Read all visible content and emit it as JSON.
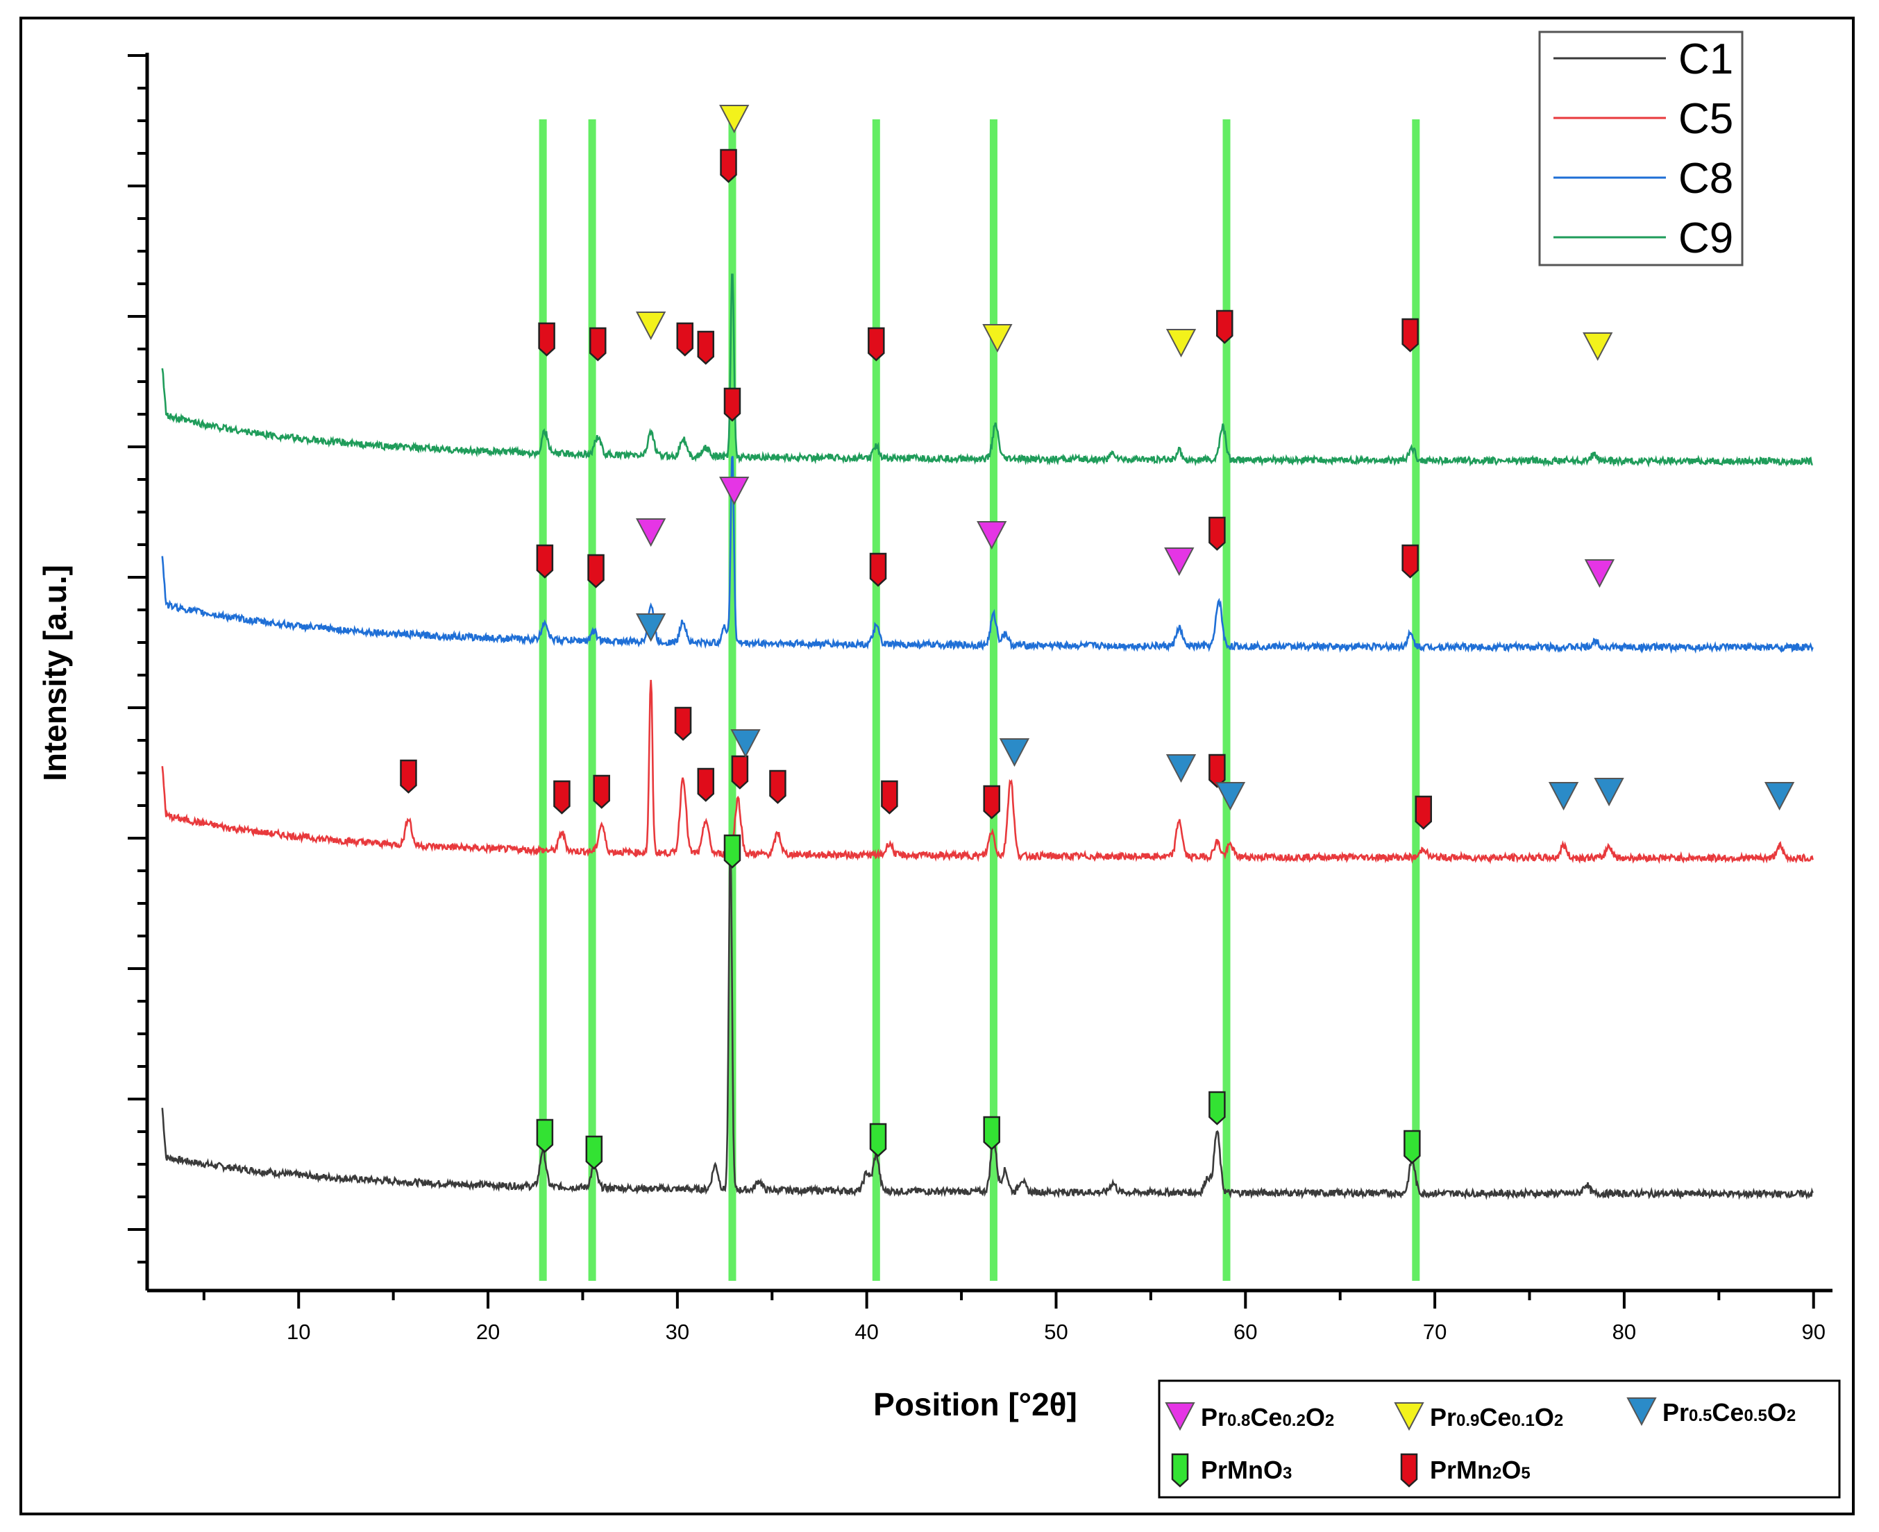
{
  "chart_data": {
    "type": "line",
    "xlabel": "Position [°2θ]",
    "ylabel": "Intensity [a.u.]",
    "xlim": [
      2,
      91
    ],
    "xticks": [
      "10",
      "20",
      "30",
      "40",
      "50",
      "60",
      "70",
      "80",
      "90"
    ],
    "y_tick_labels_shown": false,
    "grid": false,
    "reference_lines_2theta": [
      22.9,
      25.5,
      32.9,
      40.5,
      46.7,
      59.0,
      69.0
    ],
    "legend_position": "top-right",
    "series": [
      {
        "name": "C1",
        "color": "#3a3a3a",
        "baseline": 0.0,
        "decay": 0.9,
        "peaks": [
          [
            22.9,
            1.2
          ],
          [
            25.6,
            0.7
          ],
          [
            32.0,
            0.8
          ],
          [
            32.8,
            11.5
          ],
          [
            34.3,
            0.3
          ],
          [
            40.0,
            0.6
          ],
          [
            40.5,
            1.2
          ],
          [
            46.7,
            1.7
          ],
          [
            47.3,
            0.7
          ],
          [
            48.2,
            0.4
          ],
          [
            53.0,
            0.3
          ],
          [
            58.0,
            0.5
          ],
          [
            58.5,
            2.0
          ],
          [
            68.8,
            1.1
          ],
          [
            78.0,
            0.3
          ]
        ]
      },
      {
        "name": "C5",
        "color": "#e8393c",
        "baseline": 11.0,
        "decay": 1.1,
        "peaks": [
          [
            15.8,
            0.9
          ],
          [
            23.9,
            0.6
          ],
          [
            26.0,
            0.9
          ],
          [
            28.6,
            5.7
          ],
          [
            30.3,
            2.5
          ],
          [
            31.5,
            1.1
          ],
          [
            33.2,
            1.8
          ],
          [
            35.3,
            0.7
          ],
          [
            41.2,
            0.4
          ],
          [
            46.6,
            0.8
          ],
          [
            47.6,
            2.5
          ],
          [
            56.5,
            1.2
          ],
          [
            58.5,
            0.5
          ],
          [
            59.2,
            0.4
          ],
          [
            69.4,
            0.3
          ],
          [
            76.8,
            0.4
          ],
          [
            79.2,
            0.4
          ],
          [
            88.2,
            0.4
          ]
        ]
      },
      {
        "name": "C8",
        "color": "#1f6fd6",
        "baseline": 17.9,
        "decay": 1.1,
        "peaks": [
          [
            23.0,
            0.6
          ],
          [
            25.6,
            0.3
          ],
          [
            28.6,
            1.2
          ],
          [
            30.3,
            0.7
          ],
          [
            32.5,
            0.5
          ],
          [
            32.9,
            6.2
          ],
          [
            40.5,
            0.6
          ],
          [
            46.7,
            1.0
          ],
          [
            47.3,
            0.4
          ],
          [
            56.5,
            0.6
          ],
          [
            58.6,
            1.5
          ],
          [
            68.7,
            0.4
          ],
          [
            78.5,
            0.2
          ]
        ]
      },
      {
        "name": "C9",
        "color": "#1f9c5a",
        "baseline": 24.0,
        "decay": 1.2,
        "peaks": [
          [
            23.0,
            0.7
          ],
          [
            25.8,
            0.6
          ],
          [
            28.6,
            0.8
          ],
          [
            30.3,
            0.6
          ],
          [
            31.5,
            0.3
          ],
          [
            32.9,
            6.2
          ],
          [
            40.5,
            0.4
          ],
          [
            46.8,
            1.1
          ],
          [
            53.0,
            0.2
          ],
          [
            56.5,
            0.3
          ],
          [
            58.8,
            1.1
          ],
          [
            68.8,
            0.4
          ],
          [
            78.4,
            0.2
          ]
        ]
      }
    ],
    "markers": {
      "C9": [
        {
          "phase": "PrMn2O5",
          "x": 23.1
        },
        {
          "phase": "PrMn2O5",
          "x": 25.8
        },
        {
          "phase": "Pr0.9Ce0.1O2",
          "x": 28.6
        },
        {
          "phase": "PrMn2O5",
          "x": 30.4
        },
        {
          "phase": "PrMn2O5",
          "x": 31.5
        },
        {
          "phase": "PrMn2O5",
          "x": 32.7
        },
        {
          "phase": "Pr0.9Ce0.1O2",
          "x": 33.0
        },
        {
          "phase": "PrMn2O5",
          "x": 40.5
        },
        {
          "phase": "Pr0.9Ce0.1O2",
          "x": 46.9
        },
        {
          "phase": "Pr0.9Ce0.1O2",
          "x": 56.6
        },
        {
          "phase": "PrMn2O5",
          "x": 58.9
        },
        {
          "phase": "PrMn2O5",
          "x": 68.7
        },
        {
          "phase": "Pr0.9Ce0.1O2",
          "x": 78.6
        }
      ],
      "C8": [
        {
          "phase": "PrMn2O5",
          "x": 23.0
        },
        {
          "phase": "PrMn2O5",
          "x": 25.7
        },
        {
          "phase": "Pr0.8Ce0.2O2",
          "x": 28.6
        },
        {
          "phase": "PrMn2O5",
          "x": 32.9
        },
        {
          "phase": "Pr0.8Ce0.2O2",
          "x": 33.0
        },
        {
          "phase": "PrMn2O5",
          "x": 40.6
        },
        {
          "phase": "Pr0.8Ce0.2O2",
          "x": 46.6
        },
        {
          "phase": "Pr0.8Ce0.2O2",
          "x": 56.5
        },
        {
          "phase": "PrMn2O5",
          "x": 58.5
        },
        {
          "phase": "PrMn2O5",
          "x": 68.7
        },
        {
          "phase": "Pr0.8Ce0.2O2",
          "x": 78.7
        }
      ],
      "C5": [
        {
          "phase": "PrMn2O5",
          "x": 15.8
        },
        {
          "phase": "PrMn2O5",
          "x": 23.9
        },
        {
          "phase": "PrMn2O5",
          "x": 26.0
        },
        {
          "phase": "Pr0.5Ce0.5O2",
          "x": 28.6
        },
        {
          "phase": "PrMn2O5",
          "x": 30.3
        },
        {
          "phase": "PrMn2O5",
          "x": 31.5
        },
        {
          "phase": "PrMn2O5",
          "x": 33.3
        },
        {
          "phase": "Pr0.5Ce0.5O2",
          "x": 33.6
        },
        {
          "phase": "PrMn2O5",
          "x": 35.3
        },
        {
          "phase": "PrMn2O5",
          "x": 41.2
        },
        {
          "phase": "PrMn2O5",
          "x": 46.6
        },
        {
          "phase": "Pr0.5Ce0.5O2",
          "x": 47.8
        },
        {
          "phase": "Pr0.5Ce0.5O2",
          "x": 56.6
        },
        {
          "phase": "PrMn2O5",
          "x": 58.5
        },
        {
          "phase": "Pr0.5Ce0.5O2",
          "x": 59.2
        },
        {
          "phase": "PrMn2O5",
          "x": 69.4
        },
        {
          "phase": "Pr0.5Ce0.5O2",
          "x": 76.8
        },
        {
          "phase": "Pr0.5Ce0.5O2",
          "x": 79.2
        },
        {
          "phase": "Pr0.5Ce0.5O2",
          "x": 88.2
        }
      ],
      "C1": [
        {
          "phase": "PrMnO3",
          "x": 23.0
        },
        {
          "phase": "PrMnO3",
          "x": 25.6
        },
        {
          "phase": "PrMnO3",
          "x": 32.9
        },
        {
          "phase": "PrMnO3",
          "x": 40.6
        },
        {
          "phase": "PrMnO3",
          "x": 46.6
        },
        {
          "phase": "PrMnO3",
          "x": 58.5
        },
        {
          "phase": "PrMnO3",
          "x": 68.8
        }
      ]
    },
    "phase_legend": [
      {
        "phase": "Pr0.8Ce0.2O2",
        "label_parts": [
          "Pr",
          "0.8",
          "Ce",
          "0.2",
          "O",
          "2"
        ],
        "symbol": "triangle",
        "color": "#e535e5"
      },
      {
        "phase": "Pr0.9Ce0.1O2",
        "label_parts": [
          "Pr",
          "0.9",
          "Ce",
          "0.1",
          "O",
          "2"
        ],
        "symbol": "triangle",
        "color": "#f3f21b"
      },
      {
        "phase": "Pr0.5Ce0.5O2",
        "label_parts": [
          "Pr",
          "0.5",
          "Ce",
          "0.5",
          "O",
          "2"
        ],
        "symbol": "triangle",
        "color": "#2b8bc8"
      },
      {
        "phase": "PrMnO3",
        "label_parts": [
          "PrMnO",
          "3"
        ],
        "symbol": "tag",
        "color": "#33e233"
      },
      {
        "phase": "PrMn2O5",
        "label_parts": [
          "PrMn",
          "2",
          "O",
          "5"
        ],
        "symbol": "tag",
        "color": "#e00c1a"
      }
    ]
  }
}
